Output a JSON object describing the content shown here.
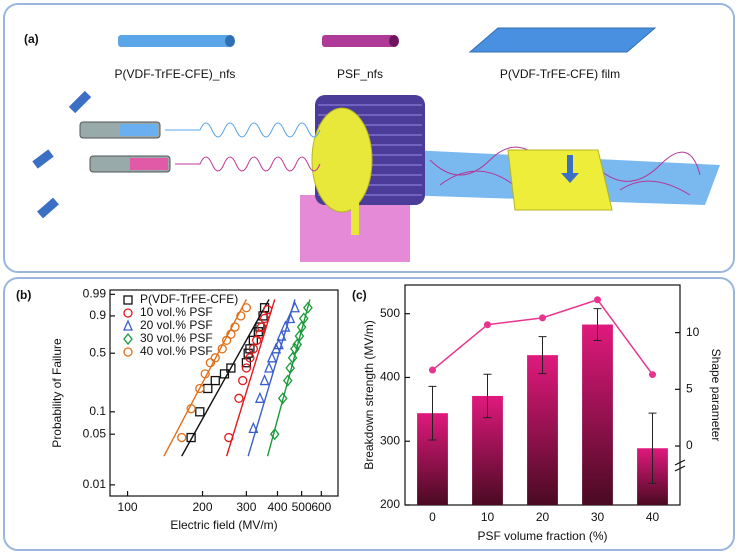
{
  "panel_a": {
    "label": "(a)",
    "items": [
      "P(VDF-TrFE-CFE)_nfs",
      "PSF_nfs",
      "P(VDF-TrFE-CFE) film"
    ]
  },
  "chart_data": [
    {
      "type": "scatter",
      "label": "(b)",
      "x_label": "Electric field (MV/m)",
      "y_label": "Probability of Failure",
      "xscale": "log",
      "yscale": "weibull",
      "xlim": [
        85,
        700
      ],
      "ylim": [
        0.007,
        0.995
      ],
      "xticks": [
        100,
        200,
        300,
        400,
        500,
        600
      ],
      "yticks": [
        0.01,
        0.05,
        0.1,
        0.5,
        0.9,
        0.99
      ],
      "legend": "upper left",
      "series": [
        {
          "name": "P(VDF-TrFE-CFE)",
          "color": "#111111",
          "marker": "square",
          "x": [
            180,
            195,
            210,
            225,
            245,
            260,
            300,
            305,
            310,
            320,
            335,
            340,
            350,
            355
          ],
          "values": [
            0.045,
            0.1,
            0.2,
            0.25,
            0.3,
            0.35,
            0.4,
            0.5,
            0.55,
            0.65,
            0.75,
            0.8,
            0.9,
            0.95
          ],
          "fit": {
            "x": [
              165,
              370
            ],
            "values": [
              0.025,
              0.98
            ]
          }
        },
        {
          "name": "10 vol.% PSF",
          "color": "#e31a1c",
          "marker": "circle",
          "x": [
            255,
            280,
            290,
            300,
            310,
            320,
            330,
            340,
            345,
            355,
            365
          ],
          "values": [
            0.045,
            0.15,
            0.25,
            0.35,
            0.45,
            0.55,
            0.65,
            0.72,
            0.8,
            0.88,
            0.94
          ],
          "fit": {
            "x": [
              250,
              390
            ],
            "values": [
              0.025,
              0.98
            ]
          }
        },
        {
          "name": "20 vol.% PSF",
          "color": "#3a5fcd",
          "marker": "triangle",
          "x": [
            320,
            340,
            355,
            370,
            380,
            395,
            405,
            415,
            430,
            450,
            470
          ],
          "values": [
            0.06,
            0.15,
            0.25,
            0.35,
            0.45,
            0.55,
            0.6,
            0.7,
            0.8,
            0.88,
            0.95
          ],
          "fit": {
            "x": [
              305,
              470
            ],
            "values": [
              0.025,
              0.98
            ]
          }
        },
        {
          "name": "30 vol.% PSF",
          "color": "#1a9a3a",
          "marker": "diamond",
          "x": [
            390,
            420,
            440,
            450,
            460,
            470,
            480,
            490,
            500,
            510,
            530
          ],
          "values": [
            0.05,
            0.15,
            0.25,
            0.35,
            0.45,
            0.55,
            0.6,
            0.7,
            0.8,
            0.88,
            0.95
          ],
          "fit": {
            "x": [
              365,
              540
            ],
            "values": [
              0.025,
              0.98
            ]
          }
        },
        {
          "name": "40 vol.% PSF",
          "color": "#e0701a",
          "marker": "circle",
          "x": [
            165,
            180,
            195,
            205,
            215,
            225,
            240,
            250,
            260,
            270,
            285,
            300
          ],
          "values": [
            0.045,
            0.11,
            0.2,
            0.3,
            0.4,
            0.45,
            0.55,
            0.65,
            0.72,
            0.8,
            0.9,
            0.95
          ],
          "fit": {
            "x": [
              140,
              300
            ],
            "values": [
              0.025,
              0.98
            ]
          }
        }
      ]
    },
    {
      "type": "bar",
      "label": "(c)",
      "x_label": "PSF volume fraction (%)",
      "y_label": "Breakdown strength (MV/m)",
      "y2_label": "Shape parameter",
      "categories": [
        "0",
        "10",
        "20",
        "30",
        "40"
      ],
      "ylim": [
        200,
        545
      ],
      "yticks": [
        200,
        300,
        400,
        500
      ],
      "y2lim": [
        -5.2,
        14.2
      ],
      "y2ticks": [
        0,
        5,
        10
      ],
      "series": [
        {
          "color": "#e0197d",
          "values": [
            344,
            371,
            435,
            483,
            289
          ],
          "errors": [
            42,
            34,
            29,
            25,
            55
          ]
        },
        {
          "axis": "y2",
          "color": "#e8348f",
          "values": [
            6.7,
            10.7,
            11.3,
            12.9,
            6.3
          ]
        }
      ]
    }
  ]
}
